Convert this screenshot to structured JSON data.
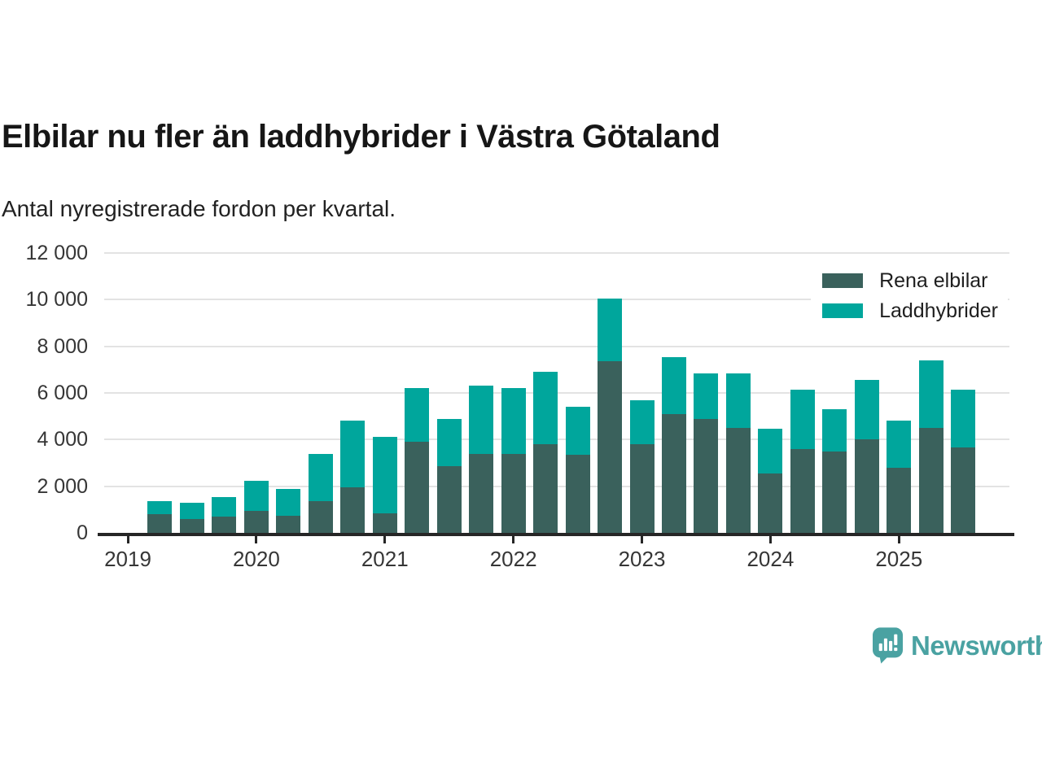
{
  "chart_data": {
    "type": "bar",
    "stacked": true,
    "title": "Elbilar nu fler än laddhybrider i Västra Götaland",
    "subtitle": "Antal nyregistrerade fordon per kvartal.",
    "categories": [
      "2019 Q2",
      "2019 Q3",
      "2019 Q4",
      "2020 Q1",
      "2020 Q2",
      "2020 Q3",
      "2020 Q4",
      "2021 Q1",
      "2021 Q2",
      "2021 Q3",
      "2021 Q4",
      "2022 Q1",
      "2022 Q2",
      "2022 Q3",
      "2022 Q4",
      "2023 Q1",
      "2023 Q2",
      "2023 Q3",
      "2023 Q4",
      "2024 Q1",
      "2024 Q2",
      "2024 Q3",
      "2024 Q4",
      "2025 Q1",
      "2025 Q2",
      "2025 Q3"
    ],
    "series": [
      {
        "name": "Rena elbilar",
        "color": "#3a615c",
        "values": [
          800,
          600,
          700,
          950,
          750,
          1350,
          1950,
          850,
          3900,
          2850,
          3400,
          3400,
          3800,
          3350,
          7350,
          3800,
          5100,
          4900,
          4500,
          2550,
          3600,
          3500,
          4000,
          2800,
          4500,
          3650
        ]
      },
      {
        "name": "Laddhybrider",
        "color": "#00a69c",
        "values": [
          550,
          700,
          850,
          1300,
          1150,
          2050,
          2850,
          3250,
          2300,
          2050,
          2900,
          2800,
          3100,
          2050,
          2700,
          1900,
          2450,
          1950,
          2350,
          1900,
          2550,
          1800,
          2550,
          2000,
          2900,
          2500
        ]
      }
    ],
    "ylim": [
      0,
      12000
    ],
    "y_ticks": [
      {
        "value": 0,
        "label": "0"
      },
      {
        "value": 2000,
        "label": "2 000"
      },
      {
        "value": 4000,
        "label": "4 000"
      },
      {
        "value": 6000,
        "label": "6 000"
      },
      {
        "value": 8000,
        "label": "8 000"
      },
      {
        "value": 10000,
        "label": "10 000"
      },
      {
        "value": 12000,
        "label": "12 000"
      }
    ],
    "x_ticks": [
      {
        "label": "2019",
        "slot": 0
      },
      {
        "label": "2020",
        "slot": 4
      },
      {
        "label": "2021",
        "slot": 8
      },
      {
        "label": "2022",
        "slot": 12
      },
      {
        "label": "2023",
        "slot": 16
      },
      {
        "label": "2024",
        "slot": 20
      },
      {
        "label": "2025",
        "slot": 24
      }
    ],
    "grid": "horizontal",
    "legend_position": "top-right",
    "axis_color": "#262626",
    "gridline_color": "#e3e3e3",
    "tick_label_color": "#363636"
  },
  "footer": {
    "brand": "Newsworthy",
    "brand_color": "#4aa2a2",
    "logo_icon": "speech-bubble-bar-chart-icon"
  }
}
